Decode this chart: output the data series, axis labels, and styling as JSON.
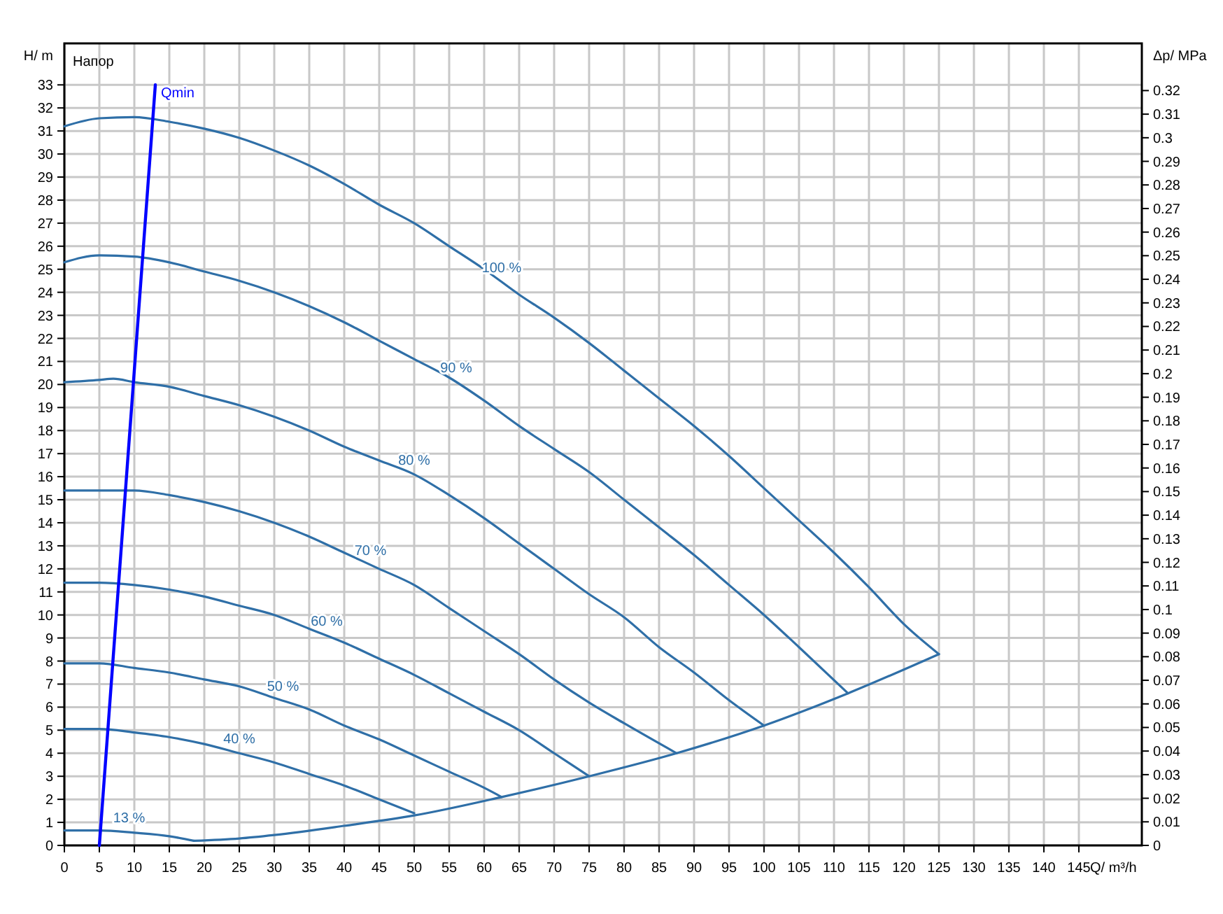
{
  "chart_data": {
    "type": "line",
    "xlabel": "Q/ m³/h",
    "ylabel": "H/ m",
    "y2label": "Δp/ MPa",
    "annotations": [
      "Напор"
    ],
    "xlim": [
      0,
      154
    ],
    "xticks": [
      0,
      5,
      10,
      15,
      20,
      25,
      30,
      35,
      40,
      45,
      50,
      55,
      60,
      65,
      70,
      75,
      80,
      85,
      90,
      95,
      100,
      105,
      110,
      115,
      120,
      125,
      130,
      135,
      140,
      145
    ],
    "ylim": [
      0,
      34.8
    ],
    "yticks": [
      0,
      1,
      2,
      3,
      4,
      5,
      6,
      7,
      8,
      9,
      10,
      11,
      12,
      13,
      14,
      15,
      16,
      17,
      18,
      19,
      20,
      21,
      22,
      23,
      24,
      25,
      26,
      27,
      28,
      29,
      30,
      31,
      32,
      33
    ],
    "y2lim": [
      0,
      0.34
    ],
    "y2ticks": [
      0,
      0.01,
      0.02,
      0.03,
      0.04,
      0.05,
      0.06,
      0.07,
      0.08,
      0.09,
      0.1,
      0.11,
      0.12,
      0.13,
      0.14,
      0.15,
      0.16,
      0.17,
      0.18,
      0.19,
      0.2,
      0.21,
      0.22,
      0.23,
      0.24,
      0.25,
      0.26,
      0.27,
      0.28,
      0.29,
      0.3,
      0.31,
      0.32
    ],
    "grid": true,
    "marker": "none",
    "line_style": "solid",
    "series": [
      {
        "name": "100 %",
        "color": "#2f6fa7",
        "x": [
          0,
          5,
          10,
          15,
          20,
          25,
          30,
          35,
          40,
          45,
          50,
          55,
          60,
          65,
          70,
          75,
          80,
          85,
          90,
          95,
          100,
          105,
          110,
          115,
          120,
          125
        ],
        "values": [
          31.2,
          31.55,
          31.6,
          31.4,
          31.1,
          30.7,
          30.15,
          29.5,
          28.7,
          27.8,
          27.0,
          26.0,
          25.0,
          23.9,
          22.9,
          21.8,
          20.6,
          19.4,
          18.2,
          16.9,
          15.5,
          14.1,
          12.7,
          11.2,
          9.6,
          8.3
        ]
      },
      {
        "name": "90 %",
        "color": "#2f6fa7",
        "x": [
          0,
          5,
          10,
          15,
          20,
          25,
          30,
          35,
          40,
          45,
          50,
          55,
          60,
          65,
          70,
          75,
          80,
          85,
          90,
          95,
          100,
          105,
          112
        ],
        "values": [
          25.3,
          25.6,
          25.55,
          25.3,
          24.9,
          24.5,
          24.0,
          23.4,
          22.7,
          21.9,
          21.1,
          20.3,
          19.3,
          18.2,
          17.2,
          16.2,
          15.0,
          13.8,
          12.6,
          11.3,
          10.0,
          8.6,
          6.6
        ]
      },
      {
        "name": "80 %",
        "color": "#2f6fa7",
        "x": [
          0,
          5,
          7,
          10,
          15,
          20,
          25,
          30,
          35,
          40,
          45,
          50,
          55,
          60,
          65,
          70,
          75,
          80,
          85,
          90,
          95,
          100
        ],
        "values": [
          20.1,
          20.2,
          20.25,
          20.1,
          19.9,
          19.5,
          19.1,
          18.6,
          18.0,
          17.3,
          16.7,
          16.1,
          15.2,
          14.2,
          13.1,
          12.0,
          10.9,
          9.9,
          8.6,
          7.5,
          6.3,
          5.2
        ]
      },
      {
        "name": "70 %",
        "color": "#2f6fa7",
        "x": [
          0,
          10,
          15,
          20,
          25,
          30,
          35,
          40,
          45,
          50,
          55,
          60,
          65,
          70,
          75,
          80,
          87.5
        ],
        "values": [
          15.4,
          15.4,
          15.2,
          14.9,
          14.5,
          14.0,
          13.4,
          12.7,
          12.0,
          11.3,
          10.3,
          9.3,
          8.3,
          7.2,
          6.2,
          5.3,
          4.0
        ]
      },
      {
        "name": "60 %",
        "color": "#2f6fa7",
        "x": [
          0,
          5,
          10,
          15,
          20,
          25,
          30,
          35,
          40,
          45,
          50,
          55,
          60,
          65,
          70,
          75
        ],
        "values": [
          11.4,
          11.4,
          11.3,
          11.1,
          10.8,
          10.4,
          10.0,
          9.4,
          8.8,
          8.1,
          7.4,
          6.6,
          5.8,
          5.0,
          4.0,
          3.0
        ]
      },
      {
        "name": "50 %",
        "color": "#2f6fa7",
        "x": [
          0,
          5,
          10,
          15,
          20,
          25,
          30,
          35,
          40,
          45,
          50,
          55,
          60,
          62.5
        ],
        "values": [
          7.9,
          7.9,
          7.7,
          7.5,
          7.2,
          6.9,
          6.4,
          5.9,
          5.2,
          4.6,
          3.9,
          3.2,
          2.5,
          2.1
        ]
      },
      {
        "name": "40 %",
        "color": "#2f6fa7",
        "x": [
          0,
          5,
          10,
          15,
          20,
          25,
          30,
          35,
          40,
          45,
          50
        ],
        "values": [
          5.05,
          5.05,
          4.9,
          4.7,
          4.4,
          4.0,
          3.6,
          3.1,
          2.6,
          2.0,
          1.4
        ]
      },
      {
        "name": "13 %",
        "color": "#2f6fa7",
        "x": [
          0,
          5,
          10,
          15,
          18.5
        ],
        "values": [
          0.65,
          0.65,
          0.55,
          0.4,
          0.2
        ]
      },
      {
        "color": "#2f6fa7",
        "x": [
          18.5,
          25,
          30,
          40,
          50,
          62.5,
          75,
          87.5,
          100,
          112,
          125
        ],
        "values": [
          0.2,
          0.3,
          0.45,
          0.85,
          1.3,
          2.1,
          3.0,
          4.0,
          5.2,
          6.6,
          8.3
        ]
      },
      {
        "name": "Qmin",
        "color": "#0000ff",
        "x": [
          5,
          13
        ],
        "values": [
          0,
          33
        ]
      }
    ]
  }
}
